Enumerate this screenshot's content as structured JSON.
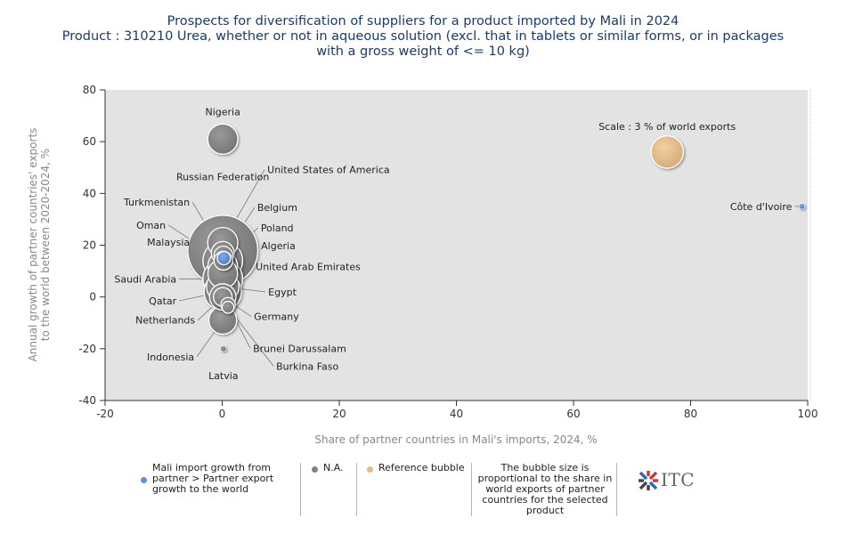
{
  "title_lines": [
    "Prospects for diversification of suppliers for a product imported by Mali in 2024",
    "Product : 310210 Urea, whether or not in aqueous solution (excl. that in tablets or similar forms, or in packages",
    "with a gross weight of <= 10 kg)"
  ],
  "chart_data": {
    "type": "scatter",
    "xlabel": "Share of partner countries in Mali's imports, 2024, %",
    "ylabel": "Annual growth of partner countries' exports to the world between 2020-2024, %",
    "xlim": [
      -20,
      100
    ],
    "ylim": [
      -40,
      80
    ],
    "x_ticks": [
      -20,
      0,
      20,
      40,
      60,
      80,
      100
    ],
    "y_ticks": [
      -40,
      -20,
      0,
      20,
      40,
      60,
      80
    ],
    "colors": {
      "plot_bg": "#e3e3e3",
      "gray": "#808080",
      "blue": "#5b8fd9",
      "reference": "#e2bb8a"
    },
    "points": [
      {
        "name": "Nigeria",
        "x": 0.1,
        "y": 61,
        "size": 2.6,
        "category": "na"
      },
      {
        "name": "Russian Federation",
        "x": 0.1,
        "y": 18,
        "size": 14,
        "category": "na"
      },
      {
        "name": "United States of America",
        "x": 0.1,
        "y": 21,
        "size": 2.6,
        "category": "na"
      },
      {
        "name": "Turkmenistan",
        "x": 0.1,
        "y": 17,
        "size": 1.5,
        "category": "na"
      },
      {
        "name": "Belgium",
        "x": 0.2,
        "y": 16,
        "size": 1.0,
        "category": "na"
      },
      {
        "name": "Oman",
        "x": 0.1,
        "y": 14,
        "size": 4.5,
        "category": "na"
      },
      {
        "name": "Poland",
        "x": 0.2,
        "y": 14,
        "size": 1.0,
        "category": "na"
      },
      {
        "name": "Malaysia",
        "x": 0.1,
        "y": 12,
        "size": 2.5,
        "category": "na"
      },
      {
        "name": "Algeria",
        "x": 0.1,
        "y": 12,
        "size": 2.5,
        "category": "na"
      },
      {
        "name": "United Arab Emirates",
        "x": 0.1,
        "y": 9,
        "size": 2.5,
        "category": "na"
      },
      {
        "name": "Saudi Arabia",
        "x": 0.1,
        "y": 7,
        "size": 4.5,
        "category": "na"
      },
      {
        "name": "Egypt",
        "x": 0.1,
        "y": 4,
        "size": 3.0,
        "category": "na"
      },
      {
        "name": "Qatar",
        "x": 0.1,
        "y": 2,
        "size": 4.0,
        "category": "na"
      },
      {
        "name": "Germany",
        "x": 0.1,
        "y": 0,
        "size": 1.0,
        "category": "na"
      },
      {
        "name": "Netherlands",
        "x": 0.1,
        "y": 0,
        "size": 2.0,
        "category": "na"
      },
      {
        "name": "Brunei Darussalam",
        "x": 1,
        "y": -3,
        "size": 0.6,
        "category": "na"
      },
      {
        "name": "Burkina Faso",
        "x": 1,
        "y": -4,
        "size": 0.4,
        "category": "na"
      },
      {
        "name": "Indonesia",
        "x": 0.1,
        "y": -9,
        "size": 2.2,
        "category": "na"
      },
      {
        "name": "Latvia",
        "x": 0.2,
        "y": -20,
        "size": 0.1,
        "category": "na"
      },
      {
        "name": "",
        "x": 0.3,
        "y": 15,
        "size": 0.5,
        "category": "growth"
      },
      {
        "name": "Côte d'Ivoire",
        "x": 99,
        "y": 35,
        "size": 0.1,
        "category": "growth"
      },
      {
        "name": "Scale : 3 % of world exports",
        "x": 76,
        "y": 56,
        "size": 3,
        "category": "reference"
      }
    ]
  },
  "legend": {
    "growth": "Mali import growth from partner > Partner export growth to the world",
    "na": "N.A.",
    "reference": "Reference bubble",
    "note": "The bubble size is proportional to the share in world exports of partner countries for the selected product"
  },
  "logo": {
    "text": "ITC"
  }
}
